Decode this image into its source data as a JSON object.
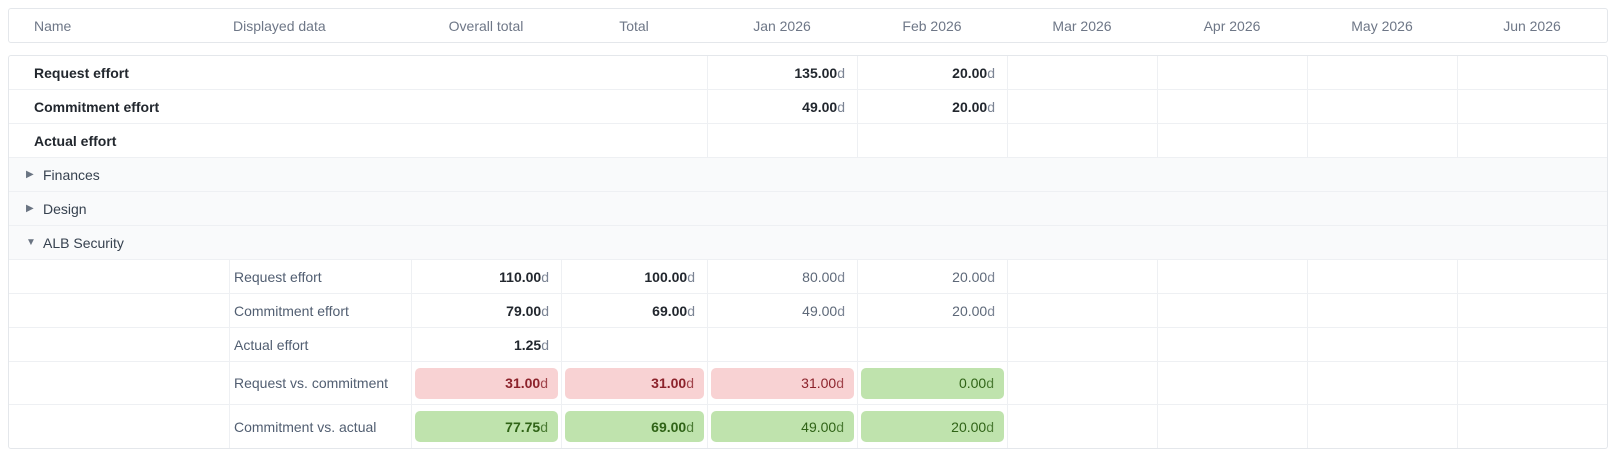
{
  "table": {
    "columns": [
      {
        "key": "name",
        "label": "Name"
      },
      {
        "key": "displayed",
        "label": "Displayed data"
      },
      {
        "key": "overall",
        "label": "Overall total"
      },
      {
        "key": "total",
        "label": "Total"
      },
      {
        "key": "m1",
        "label": "Jan 2026"
      },
      {
        "key": "m2",
        "label": "Feb 2026"
      },
      {
        "key": "m3",
        "label": "Mar 2026"
      },
      {
        "key": "m4",
        "label": "Apr 2026"
      },
      {
        "key": "m5",
        "label": "May 2026"
      },
      {
        "key": "m6",
        "label": "Jun 2026"
      }
    ],
    "icons": {
      "collapsed": "▶",
      "expanded": "▼"
    },
    "colors": {
      "badge_red_bg": "#f8d2d3",
      "badge_red_text": "#8c222b",
      "badge_green_bg": "#bfe3ad",
      "badge_green_text": "#2f6316"
    },
    "rows": [
      {
        "type": "top-metric",
        "label": "Request effort",
        "values": {
          "m1": {
            "text": "135.00d",
            "variant": "bold"
          },
          "m2": {
            "text": "20.00d",
            "variant": "bold"
          }
        }
      },
      {
        "type": "top-metric",
        "label": "Commitment effort",
        "values": {
          "m1": {
            "text": "49.00d",
            "variant": "bold"
          },
          "m2": {
            "text": "20.00d",
            "variant": "bold"
          }
        }
      },
      {
        "type": "top-metric",
        "label": "Actual effort",
        "values": {}
      },
      {
        "type": "group",
        "label": "Finances",
        "expanded": false
      },
      {
        "type": "group",
        "label": "Design",
        "expanded": false
      },
      {
        "type": "group",
        "label": "ALB Security",
        "expanded": true
      },
      {
        "type": "sub-metric",
        "label": "Request effort",
        "values": {
          "overall": {
            "text": "110.00d",
            "variant": "bold"
          },
          "total": {
            "text": "100.00d",
            "variant": "bold"
          },
          "m1": {
            "text": "80.00d",
            "variant": "muted"
          },
          "m2": {
            "text": "20.00d",
            "variant": "muted"
          }
        }
      },
      {
        "type": "sub-metric",
        "label": "Commitment effort",
        "values": {
          "overall": {
            "text": "79.00d",
            "variant": "bold"
          },
          "total": {
            "text": "69.00d",
            "variant": "bold"
          },
          "m1": {
            "text": "49.00d",
            "variant": "muted"
          },
          "m2": {
            "text": "20.00d",
            "variant": "muted"
          }
        }
      },
      {
        "type": "sub-metric",
        "label": "Actual effort",
        "values": {
          "overall": {
            "text": "1.25d",
            "variant": "bold"
          }
        }
      },
      {
        "type": "sub-metric",
        "tall": true,
        "label": "Request vs. commitment",
        "values": {
          "overall": {
            "text": "31.00d",
            "variant": "badge-red-bold"
          },
          "total": {
            "text": "31.00d",
            "variant": "badge-red-bold"
          },
          "m1": {
            "text": "31.00d",
            "variant": "badge-red"
          },
          "m2": {
            "text": "0.00d",
            "variant": "badge-green"
          }
        }
      },
      {
        "type": "sub-metric",
        "tall": true,
        "label": "Commitment vs. actual",
        "values": {
          "overall": {
            "text": "77.75d",
            "variant": "badge-green-bold"
          },
          "total": {
            "text": "69.00d",
            "variant": "badge-green-bold"
          },
          "m1": {
            "text": "49.00d",
            "variant": "badge-green"
          },
          "m2": {
            "text": "20.00d",
            "variant": "badge-green"
          }
        }
      }
    ]
  }
}
